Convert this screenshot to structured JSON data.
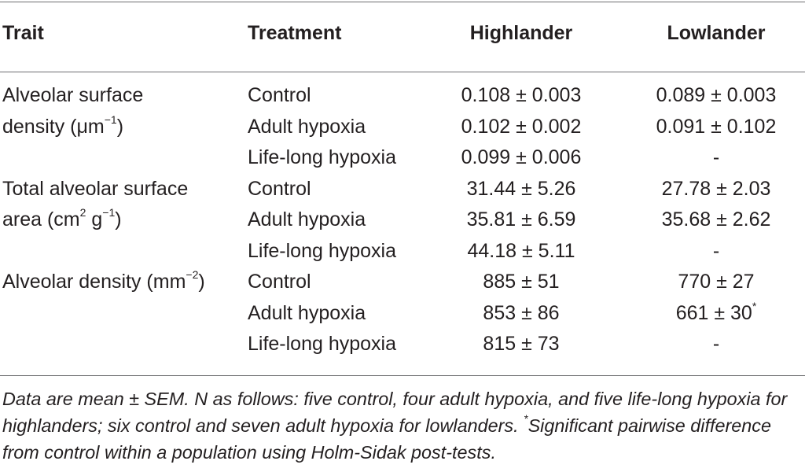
{
  "headers": {
    "trait": "Trait",
    "treatment": "Treatment",
    "highlander": "Highlander",
    "lowlander": "Lowlander"
  },
  "traits": [
    {
      "line1": "Alveolar surface",
      "line2_pre": "density (μm",
      "line2_sup": "−1",
      "line2_post": ")"
    },
    {
      "line1": "Total alveolar surface",
      "line2_pre": "area (cm",
      "line2_sup": "2",
      "line2_mid": " g",
      "line2_sup2": "−1",
      "line2_post": ")"
    },
    {
      "line1_pre": "Alveolar density (mm",
      "line1_sup": "−2",
      "line1_post": ")"
    }
  ],
  "rows": [
    {
      "treatment": "Control",
      "highlander": "0.108 ± 0.003",
      "lowlander": "0.089 ± 0.003"
    },
    {
      "treatment": "Adult hypoxia",
      "highlander": "0.102 ± 0.002",
      "lowlander": "0.091 ± 0.102"
    },
    {
      "treatment": "Life-long hypoxia",
      "highlander": "0.099 ± 0.006",
      "lowlander": "-"
    },
    {
      "treatment": "Control",
      "highlander": "31.44 ± 5.26",
      "lowlander": "27.78 ± 2.03"
    },
    {
      "treatment": "Adult hypoxia",
      "highlander": "35.81 ± 6.59",
      "lowlander": "35.68 ± 2.62"
    },
    {
      "treatment": "Life-long hypoxia",
      "highlander": "44.18 ± 5.11",
      "lowlander": "-"
    },
    {
      "treatment": "Control",
      "highlander": "885 ± 51",
      "lowlander": "770 ± 27"
    },
    {
      "treatment": "Adult hypoxia",
      "highlander": "853 ± 86",
      "lowlander": "661 ± 30",
      "lowlander_sup": "*"
    },
    {
      "treatment": "Life-long hypoxia",
      "highlander": "815 ± 73",
      "lowlander": "-"
    }
  ],
  "footnote": {
    "part1": "Data are mean ± SEM. N as follows: five control, four adult hypoxia, and five life-long hypoxia for highlanders; six control and seven adult hypoxia for lowlanders. ",
    "sup": "*",
    "part2": "Significant pairwise difference from control within a population using Holm-Sidak post-tests."
  }
}
